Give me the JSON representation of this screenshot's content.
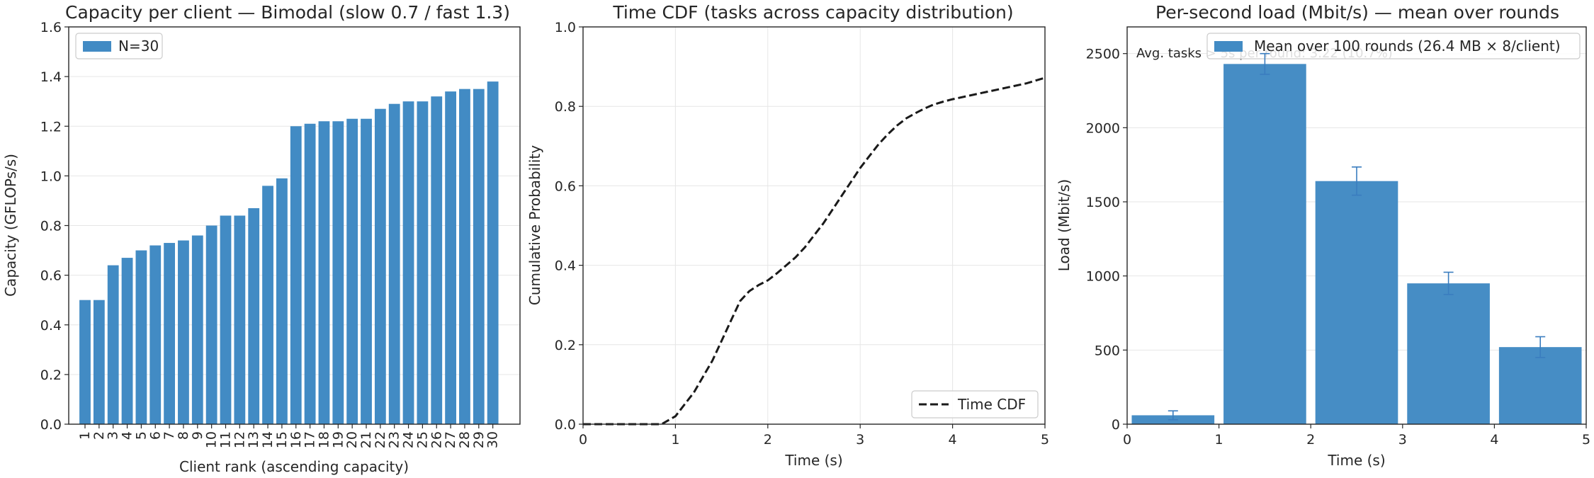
{
  "chart_data": [
    {
      "type": "bar",
      "title": "Capacity per client — Bimodal (slow 0.7 / fast 1.3)",
      "xlabel": "Client rank (ascending capacity)",
      "ylabel": "Capacity (GFLOPs/s)",
      "ylim": [
        0,
        1.6
      ],
      "yticks": [
        "0.0",
        "0.2",
        "0.4",
        "0.6",
        "0.8",
        "1.0",
        "1.2",
        "1.4",
        "1.6"
      ],
      "grid": "y",
      "legend": {
        "position": "top-left",
        "entries": [
          "N=30"
        ]
      },
      "color": "#428bc4",
      "series": [
        {
          "name": "N=30",
          "categories": [
            "1",
            "2",
            "3",
            "4",
            "5",
            "6",
            "7",
            "8",
            "9",
            "10",
            "11",
            "12",
            "13",
            "14",
            "15",
            "16",
            "17",
            "18",
            "19",
            "20",
            "21",
            "22",
            "23",
            "24",
            "25",
            "26",
            "27",
            "28",
            "29",
            "30"
          ],
          "values": [
            0.5,
            0.5,
            0.64,
            0.67,
            0.7,
            0.72,
            0.73,
            0.74,
            0.76,
            0.8,
            0.84,
            0.84,
            0.87,
            0.96,
            0.99,
            1.2,
            1.21,
            1.22,
            1.22,
            1.23,
            1.23,
            1.27,
            1.29,
            1.3,
            1.3,
            1.32,
            1.34,
            1.35,
            1.35,
            1.38
          ]
        }
      ]
    },
    {
      "type": "line",
      "title": "Time CDF (tasks across capacity distribution)",
      "xlabel": "Time (s)",
      "ylabel": "Cumulative Probability",
      "xlim": [
        0,
        5
      ],
      "ylim": [
        0,
        1.0
      ],
      "xticks": [
        "0",
        "1",
        "2",
        "3",
        "4",
        "5"
      ],
      "yticks": [
        "0.0",
        "0.2",
        "0.4",
        "0.6",
        "0.8",
        "1.0"
      ],
      "grid": "both",
      "legend": {
        "position": "bottom-right",
        "entries": [
          "Time CDF"
        ]
      },
      "series": [
        {
          "name": "Time CDF",
          "style": "dashed",
          "color": "#1a1a1a",
          "x": [
            0.0,
            0.7,
            0.85,
            1.0,
            1.1,
            1.2,
            1.3,
            1.4,
            1.5,
            1.6,
            1.7,
            1.8,
            1.9,
            2.0,
            2.1,
            2.2,
            2.3,
            2.4,
            2.5,
            2.6,
            2.7,
            2.8,
            2.9,
            3.0,
            3.1,
            3.2,
            3.3,
            3.4,
            3.5,
            3.6,
            3.7,
            3.8,
            3.9,
            4.0,
            4.2,
            4.4,
            4.6,
            4.8,
            5.0
          ],
          "y": [
            0.0,
            0.0,
            0.0,
            0.02,
            0.05,
            0.08,
            0.12,
            0.16,
            0.21,
            0.26,
            0.31,
            0.335,
            0.35,
            0.362,
            0.38,
            0.4,
            0.42,
            0.445,
            0.475,
            0.505,
            0.54,
            0.575,
            0.61,
            0.645,
            0.675,
            0.705,
            0.73,
            0.752,
            0.77,
            0.783,
            0.795,
            0.805,
            0.812,
            0.818,
            0.828,
            0.838,
            0.848,
            0.858,
            0.872
          ]
        }
      ]
    },
    {
      "type": "bar",
      "title": "Per-second load (Mbit/s) — mean over rounds",
      "xlabel": "Time (s)",
      "ylabel": "Load (Mbit/s)",
      "xlim": [
        0,
        5
      ],
      "ylim": [
        0,
        2680
      ],
      "xticks": [
        "0",
        "1",
        "2",
        "3",
        "4",
        "5"
      ],
      "yticks": [
        "0",
        "500",
        "1000",
        "1500",
        "2000",
        "2500"
      ],
      "grid": "y",
      "legend": {
        "position": "top-right",
        "entries": [
          "Mean over 100 rounds (26.4 MB × 8/client)"
        ]
      },
      "annotation": "Avg. tasks > 5s per round: 3.22 (10.7%)",
      "color": "#428bc4",
      "errorbar_color": "#3a7dbf",
      "series": [
        {
          "name": "Mean over 100 rounds (26.4 MB × 8/client)",
          "x": [
            0.5,
            1.5,
            2.5,
            3.5,
            4.5
          ],
          "values": [
            60,
            2430,
            1640,
            950,
            520
          ],
          "errors": [
            30,
            70,
            95,
            75,
            70
          ]
        }
      ]
    }
  ]
}
